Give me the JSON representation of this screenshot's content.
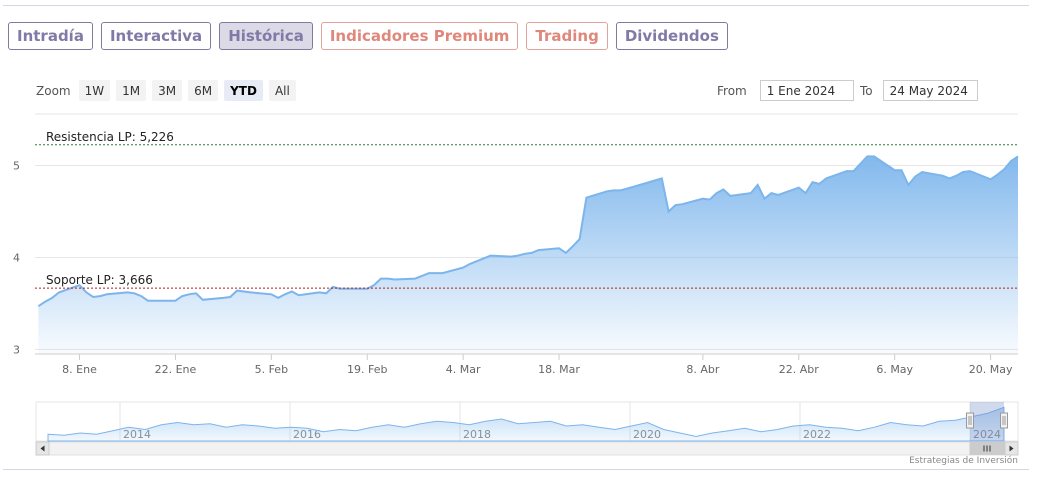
{
  "tabs": [
    {
      "label": "Intradía",
      "color": "#807aa6",
      "active": false
    },
    {
      "label": "Interactiva",
      "color": "#807aa6",
      "active": false
    },
    {
      "label": "Histórica",
      "color": "#807aa6",
      "active": true
    },
    {
      "label": "Indicadores Premium",
      "color": "#e0877c",
      "active": false
    },
    {
      "label": "Trading",
      "color": "#e0877c",
      "active": false
    },
    {
      "label": "Dividendos",
      "color": "#807aa6",
      "active": false
    }
  ],
  "zoom": {
    "label": "Zoom",
    "buttons": [
      "1W",
      "1M",
      "3M",
      "6M",
      "YTD",
      "All"
    ],
    "selected": "YTD"
  },
  "range": {
    "from_label": "From",
    "from_value": "1 Ene 2024",
    "to_label": "To",
    "to_value": "24 May 2024"
  },
  "credit": "Estrategias de Inversión",
  "colors": {
    "series_line": "#7cb5ec",
    "resistance": "#2e7d32",
    "support": "#b71c1c"
  },
  "chart_data": {
    "type": "area",
    "x_format": "date",
    "x": [
      "2024-01-02",
      "2024-01-03",
      "2024-01-04",
      "2024-01-05",
      "2024-01-08",
      "2024-01-09",
      "2024-01-10",
      "2024-01-11",
      "2024-01-12",
      "2024-01-15",
      "2024-01-16",
      "2024-01-17",
      "2024-01-18",
      "2024-01-19",
      "2024-01-22",
      "2024-01-23",
      "2024-01-24",
      "2024-01-25",
      "2024-01-26",
      "2024-01-29",
      "2024-01-30",
      "2024-01-31",
      "2024-02-01",
      "2024-02-02",
      "2024-02-05",
      "2024-02-06",
      "2024-02-07",
      "2024-02-08",
      "2024-02-09",
      "2024-02-12",
      "2024-02-13",
      "2024-02-14",
      "2024-02-15",
      "2024-02-16",
      "2024-02-19",
      "2024-02-20",
      "2024-02-21",
      "2024-02-22",
      "2024-02-23",
      "2024-02-26",
      "2024-02-27",
      "2024-02-28",
      "2024-02-29",
      "2024-03-01",
      "2024-03-04",
      "2024-03-05",
      "2024-03-06",
      "2024-03-07",
      "2024-03-08",
      "2024-03-11",
      "2024-03-12",
      "2024-03-13",
      "2024-03-14",
      "2024-03-15",
      "2024-03-18",
      "2024-03-19",
      "2024-03-20",
      "2024-03-21",
      "2024-03-22",
      "2024-03-25",
      "2024-03-26",
      "2024-03-27",
      "2024-03-28",
      "2024-04-02",
      "2024-04-03",
      "2024-04-04",
      "2024-04-05",
      "2024-04-08",
      "2024-04-09",
      "2024-04-10",
      "2024-04-11",
      "2024-04-12",
      "2024-04-15",
      "2024-04-16",
      "2024-04-17",
      "2024-04-18",
      "2024-04-19",
      "2024-04-22",
      "2024-04-23",
      "2024-04-24",
      "2024-04-25",
      "2024-04-26",
      "2024-04-29",
      "2024-04-30",
      "2024-05-02",
      "2024-05-03",
      "2024-05-06",
      "2024-05-07",
      "2024-05-08",
      "2024-05-09",
      "2024-05-10",
      "2024-05-13",
      "2024-05-14",
      "2024-05-15",
      "2024-05-16",
      "2024-05-17",
      "2024-05-20",
      "2024-05-21",
      "2024-05-22",
      "2024-05-23",
      "2024-05-24"
    ],
    "values": [
      3.47,
      3.52,
      3.56,
      3.62,
      3.7,
      3.62,
      3.57,
      3.58,
      3.6,
      3.62,
      3.61,
      3.58,
      3.53,
      3.53,
      3.53,
      3.58,
      3.6,
      3.61,
      3.54,
      3.56,
      3.57,
      3.64,
      3.63,
      3.62,
      3.6,
      3.56,
      3.6,
      3.63,
      3.59,
      3.62,
      3.61,
      3.68,
      3.66,
      3.66,
      3.66,
      3.7,
      3.77,
      3.77,
      3.76,
      3.77,
      3.8,
      3.83,
      3.83,
      3.83,
      3.89,
      3.93,
      3.96,
      3.99,
      4.02,
      4.01,
      4.02,
      4.04,
      4.05,
      4.08,
      4.1,
      4.05,
      4.12,
      4.2,
      4.65,
      4.72,
      4.73,
      4.73,
      4.75,
      4.86,
      4.5,
      4.57,
      4.58,
      4.64,
      4.63,
      4.7,
      4.74,
      4.67,
      4.7,
      4.79,
      4.64,
      4.7,
      4.68,
      4.76,
      4.7,
      4.82,
      4.8,
      4.86,
      4.94,
      4.94,
      5.1,
      5.1,
      4.95,
      4.95,
      4.79,
      4.88,
      4.93,
      4.89,
      4.86,
      4.89,
      4.93,
      4.94,
      4.85,
      4.9,
      4.96,
      5.05,
      5.1
    ],
    "ylim": [
      2.95,
      5.55
    ],
    "yticks": [
      3,
      4,
      5
    ],
    "xticks": [
      {
        "date": "2024-01-08",
        "label": "8. Ene"
      },
      {
        "date": "2024-01-22",
        "label": "22. Ene"
      },
      {
        "date": "2024-02-05",
        "label": "5. Feb"
      },
      {
        "date": "2024-02-19",
        "label": "19. Feb"
      },
      {
        "date": "2024-03-04",
        "label": "4. Mar"
      },
      {
        "date": "2024-03-18",
        "label": "18. Mar"
      },
      {
        "date": "2024-04-08",
        "label": "8. Abr"
      },
      {
        "date": "2024-04-22",
        "label": "22. Abr"
      },
      {
        "date": "2024-05-06",
        "label": "6. May"
      },
      {
        "date": "2024-05-20",
        "label": "20. May"
      }
    ],
    "reference_lines": [
      {
        "label": "Resistencia LP: 5,226",
        "value": 5.226,
        "style": "dashed",
        "color": "#2e7d32"
      },
      {
        "label": "Soporte LP: 3,666",
        "value": 3.666,
        "style": "dashed",
        "color": "#b71c1c"
      }
    ],
    "grid": "horizontal",
    "navigator": {
      "year_labels": [
        "2014",
        "2016",
        "2018",
        "2020",
        "2022",
        "2024"
      ],
      "values": [
        2.8,
        2.7,
        2.9,
        2.8,
        3.1,
        3.4,
        3.2,
        3.6,
        3.8,
        3.6,
        3.7,
        3.4,
        3.6,
        3.5,
        3.3,
        3.4,
        3.3,
        3.0,
        3.2,
        3.1,
        3.4,
        3.6,
        3.4,
        3.7,
        3.9,
        3.8,
        3.6,
        3.9,
        4.1,
        3.7,
        3.8,
        3.9,
        3.5,
        3.6,
        3.4,
        3.2,
        3.5,
        3.8,
        3.2,
        2.9,
        2.6,
        2.9,
        3.1,
        3.3,
        3.0,
        3.2,
        3.5,
        3.6,
        3.4,
        3.3,
        3.1,
        3.4,
        3.8,
        3.6,
        3.5,
        3.9,
        4.0,
        4.3,
        4.6,
        5.1
      ]
    }
  }
}
